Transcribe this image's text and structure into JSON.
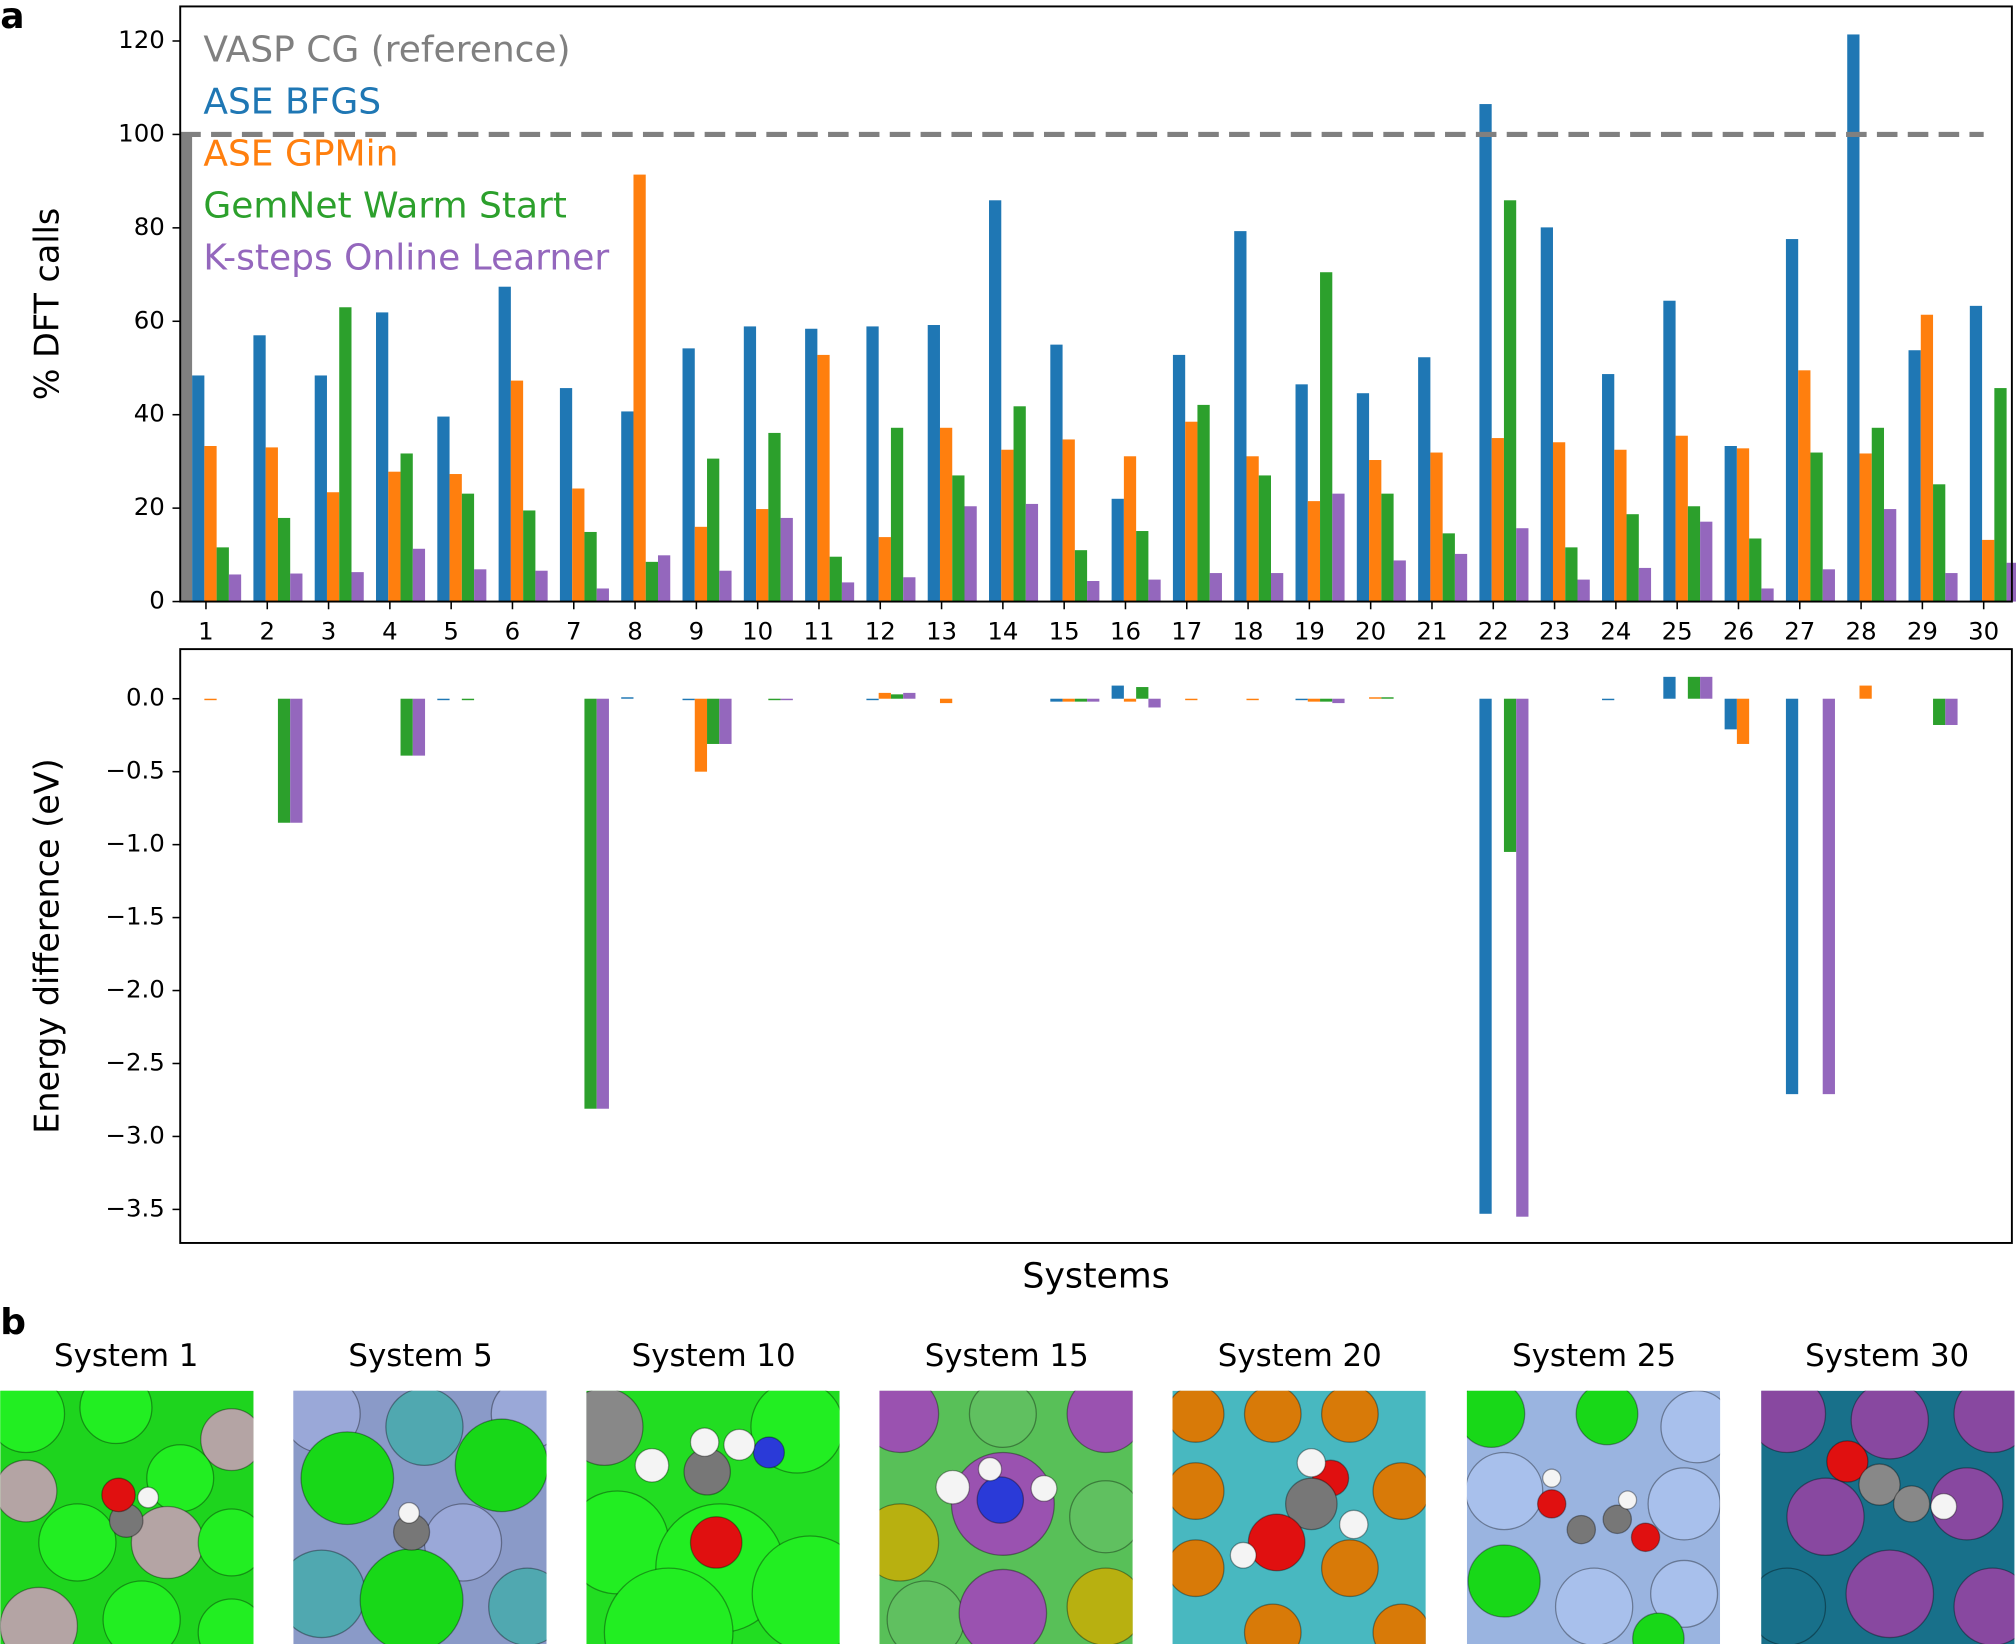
{
  "panel_labels": [
    "a",
    "b"
  ],
  "chart_data": [
    {
      "type": "bar",
      "y_label": "% DFT calls",
      "legend": true,
      "categories": [
        "1",
        "2",
        "3",
        "4",
        "5",
        "6",
        "7",
        "8",
        "9",
        "10",
        "11",
        "12",
        "13",
        "14",
        "15",
        "16",
        "17",
        "18",
        "19",
        "20",
        "21",
        "22",
        "23",
        "24",
        "25",
        "26",
        "27",
        "28",
        "29",
        "30"
      ],
      "reference": {
        "name": "VASP CG (reference)",
        "color": "#808080",
        "value": 100
      },
      "series": [
        {
          "name": "ASE BFGS",
          "color": "#1f77b4",
          "values": [
            48.4,
            57,
            48.4,
            61.9,
            39.6,
            67.4,
            45.7,
            40.7,
            54.2,
            58.9,
            58.4,
            58.9,
            59.2,
            85.9,
            55,
            22,
            52.8,
            79.3,
            46.5,
            44.6,
            52.3,
            106.5,
            80.1,
            48.7,
            64.4,
            33.3,
            77.6,
            121.4,
            53.8,
            63.3
          ]
        },
        {
          "name": "ASE GPMin",
          "color": "#ff7f0e",
          "values": [
            33.3,
            33,
            23.4,
            27.8,
            27.3,
            47.3,
            24.2,
            91.4,
            16,
            19.8,
            52.8,
            13.8,
            37.2,
            32.5,
            34.7,
            31.1,
            38.5,
            31.1,
            21.5,
            30.3,
            31.9,
            35,
            34.1,
            32.5,
            35.5,
            32.8,
            49.5,
            31.7,
            61.4,
            13.2
          ]
        },
        {
          "name": "GemNet Warm Start",
          "color": "#2ca02c",
          "values": [
            11.6,
            17.9,
            63,
            31.7,
            23.1,
            19.5,
            14.9,
            8.5,
            30.6,
            36.1,
            9.6,
            37.2,
            27,
            41.8,
            11,
            15.1,
            42.1,
            27,
            70.5,
            23.1,
            14.6,
            85.9,
            11.6,
            18.7,
            20.4,
            13.5,
            31.9,
            37.2,
            25.1,
            45.7
          ]
        },
        {
          "name": "K-steps Online Learner",
          "color": "#9467bd",
          "values": [
            5.8,
            6,
            6.3,
            11.3,
            6.9,
            6.6,
            2.8,
            9.9,
            6.6,
            17.9,
            4.1,
            5.2,
            20.4,
            20.9,
            4.4,
            4.7,
            6.1,
            6.1,
            23.1,
            8.8,
            10.2,
            15.7,
            4.7,
            7.2,
            17.1,
            2.8,
            6.9,
            19.8,
            6.1,
            8.3
          ]
        }
      ],
      "ylim": [
        0,
        127.4
      ],
      "yticks": [
        0,
        20,
        40,
        60,
        80,
        100,
        120
      ]
    },
    {
      "type": "bar",
      "y_label": "Energy difference (eV)",
      "x_label": "Systems",
      "series": [
        {
          "color": "#1f77b4",
          "values": [
            0,
            0,
            0,
            0,
            -0.01,
            0,
            0,
            0.01,
            -0.01,
            0,
            0,
            -0.01,
            0,
            0,
            -0.02,
            0.09,
            0,
            0,
            -0.01,
            0,
            0,
            -3.53,
            0,
            -0.01,
            0.15,
            -0.21,
            -2.71,
            0,
            0,
            0
          ]
        },
        {
          "color": "#ff7f0e",
          "values": [
            -0.01,
            0,
            0,
            0,
            0,
            0,
            0,
            0,
            -0.5,
            0,
            0,
            0.04,
            -0.03,
            0,
            -0.02,
            -0.02,
            -0.01,
            -0.01,
            -0.02,
            0.01,
            0,
            0,
            0,
            0,
            0,
            -0.31,
            0,
            0.09,
            0,
            0
          ]
        },
        {
          "color": "#2ca02c",
          "values": [
            0,
            -0.85,
            0,
            -0.39,
            -0.01,
            0,
            -2.81,
            0,
            -0.31,
            -0.01,
            0,
            0.03,
            0,
            0,
            -0.02,
            0.08,
            0,
            0,
            -0.02,
            0.01,
            0,
            -1.05,
            0,
            0,
            0.15,
            0,
            0,
            0,
            -0.18,
            0
          ]
        },
        {
          "color": "#9467bd",
          "values": [
            0,
            -0.85,
            0,
            -0.39,
            0,
            0,
            -2.81,
            0,
            -0.31,
            -0.01,
            0,
            0.04,
            0,
            0,
            -0.02,
            -0.06,
            0,
            0,
            -0.03,
            0,
            0,
            -3.55,
            0,
            0,
            0.15,
            0,
            -2.71,
            0,
            -0.18,
            0
          ]
        }
      ],
      "ylim": [
        -3.73,
        0.34
      ],
      "yticks": [
        {
          "value": 0,
          "label": "0.0"
        },
        {
          "value": -0.5,
          "label": "−0.5"
        },
        {
          "value": -1,
          "label": "−1.0"
        },
        {
          "value": -1.5,
          "label": "−1.5"
        },
        {
          "value": -2,
          "label": "−2.0"
        },
        {
          "value": -2.5,
          "label": "−2.5"
        },
        {
          "value": -3,
          "label": "−3.0"
        },
        {
          "value": -3.5,
          "label": "−3.5"
        }
      ]
    }
  ],
  "systems": {
    "titles": [
      "System 1",
      "System 5",
      "System 10",
      "System 15",
      "System 20",
      "System 25",
      "System 30"
    ]
  }
}
